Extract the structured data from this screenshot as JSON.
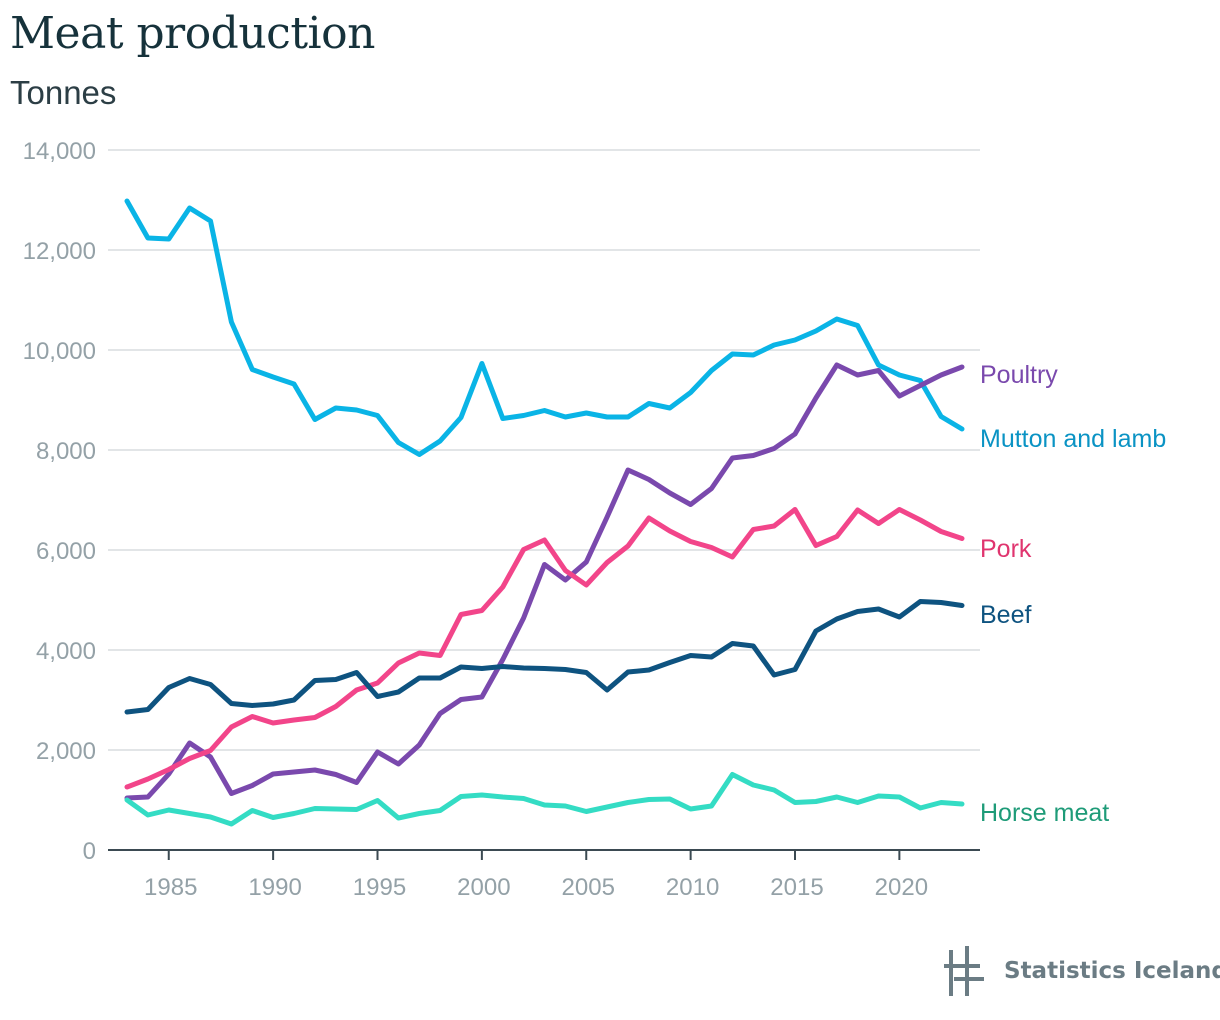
{
  "chart_data": {
    "type": "line",
    "title": "Meat production",
    "ylabel": "Tonnes",
    "xlim": [
      1983,
      2023
    ],
    "ylim": [
      0,
      14000
    ],
    "x_ticks": [
      1985,
      1990,
      1995,
      2000,
      2005,
      2010,
      2015,
      2020
    ],
    "y_ticks": [
      0,
      2000,
      4000,
      6000,
      8000,
      10000,
      12000,
      14000
    ],
    "y_tick_labels": [
      "0",
      "2,000",
      "4,000",
      "6,000",
      "8,000",
      "10,000",
      "12,000",
      "14,000"
    ],
    "grid": "horizontal",
    "legend": "direct labels at line ends (right)",
    "x": [
      1983,
      1984,
      1985,
      1986,
      1987,
      1988,
      1989,
      1990,
      1991,
      1992,
      1993,
      1994,
      1995,
      1996,
      1997,
      1998,
      1999,
      2000,
      2001,
      2002,
      2003,
      2004,
      2005,
      2006,
      2007,
      2008,
      2009,
      2010,
      2011,
      2012,
      2013,
      2014,
      2015,
      2016,
      2017,
      2018,
      2019,
      2020,
      2021,
      2022,
      2023
    ],
    "series": [
      {
        "name": "Mutton and lamb",
        "color": "#0ab4e6",
        "label_color": "#0a93c4",
        "values": [
          12980,
          12240,
          12220,
          12840,
          12580,
          10560,
          9610,
          9460,
          9320,
          8610,
          8840,
          8800,
          8690,
          8150,
          7910,
          8180,
          8650,
          9730,
          8630,
          8690,
          8790,
          8660,
          8740,
          8660,
          8660,
          8930,
          8840,
          9150,
          9590,
          9920,
          9900,
          10100,
          10200,
          10380,
          10620,
          10490,
          9700,
          9500,
          9390,
          8670,
          8420
        ]
      },
      {
        "name": "Poultry",
        "color": "#7a49ad",
        "label_color": "#7a49ad",
        "values": [
          1040,
          1060,
          1520,
          2140,
          1860,
          1130,
          1290,
          1520,
          1560,
          1600,
          1510,
          1350,
          1960,
          1720,
          2100,
          2730,
          3010,
          3060,
          3810,
          4640,
          5710,
          5400,
          5760,
          6660,
          7600,
          7410,
          7140,
          6910,
          7230,
          7840,
          7890,
          8030,
          8320,
          9040,
          9700,
          9500,
          9590,
          9080,
          9290,
          9500,
          9660
        ]
      },
      {
        "name": "Pork",
        "color": "#f2458a",
        "label_color": "#e0356f",
        "values": [
          1260,
          1420,
          1610,
          1830,
          1990,
          2460,
          2670,
          2540,
          2600,
          2650,
          2870,
          3200,
          3340,
          3740,
          3940,
          3890,
          4710,
          4790,
          5260,
          6010,
          6200,
          5590,
          5300,
          5750,
          6080,
          6640,
          6380,
          6170,
          6050,
          5860,
          6410,
          6480,
          6810,
          6090,
          6270,
          6800,
          6530,
          6810,
          6600,
          6370,
          6230
        ]
      },
      {
        "name": "Beef",
        "color": "#0e5380",
        "label_color": "#0e5380",
        "values": [
          2760,
          2810,
          3250,
          3430,
          3310,
          2930,
          2890,
          2920,
          3000,
          3390,
          3410,
          3550,
          3070,
          3160,
          3440,
          3440,
          3660,
          3630,
          3670,
          3640,
          3630,
          3610,
          3550,
          3200,
          3560,
          3600,
          3750,
          3890,
          3860,
          4130,
          4080,
          3500,
          3610,
          4380,
          4620,
          4770,
          4820,
          4660,
          4970,
          4950,
          4890
        ]
      },
      {
        "name": "Horse meat",
        "color": "#34dcc4",
        "label_color": "#1e9b78",
        "values": [
          1000,
          700,
          800,
          730,
          660,
          520,
          790,
          650,
          730,
          830,
          820,
          810,
          990,
          640,
          730,
          790,
          1070,
          1100,
          1060,
          1030,
          900,
          880,
          770,
          860,
          950,
          1010,
          1020,
          820,
          880,
          1510,
          1300,
          1200,
          950,
          970,
          1060,
          950,
          1080,
          1060,
          840,
          950,
          920
        ]
      }
    ]
  },
  "footer": {
    "brand": "Statistics Iceland"
  }
}
